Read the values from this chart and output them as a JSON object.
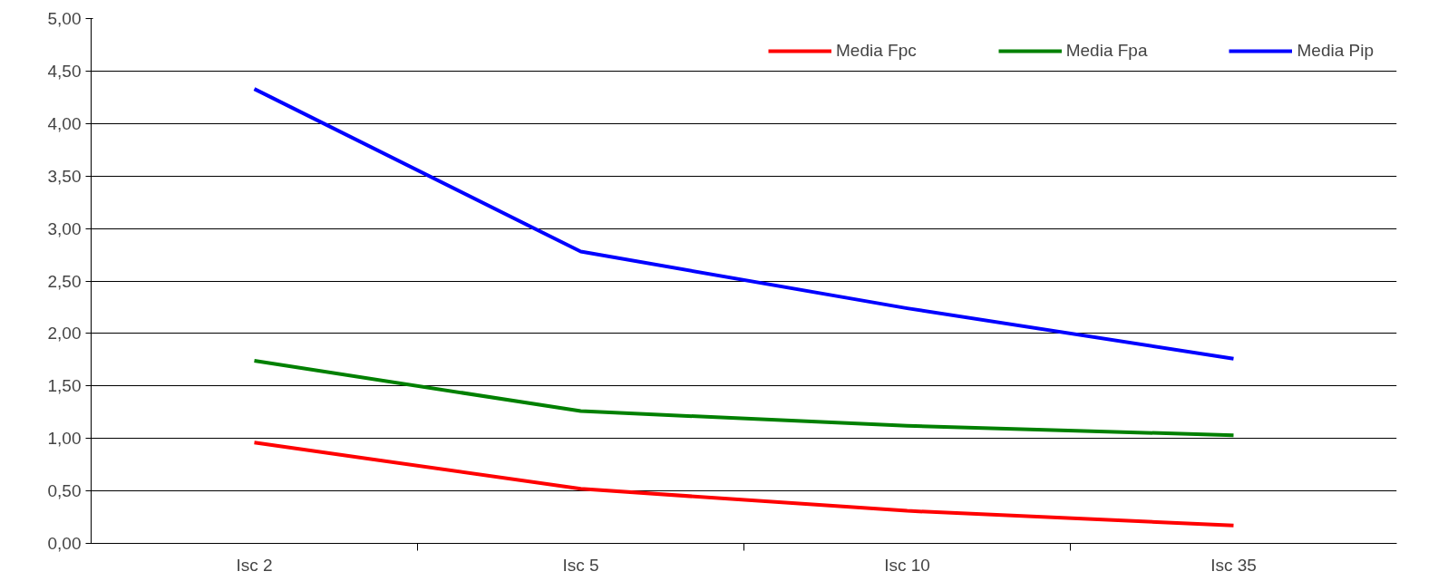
{
  "chart_data": {
    "type": "line",
    "categories": [
      "Isc 2",
      "Isc 5",
      "Isc 10",
      "Isc 35"
    ],
    "series": [
      {
        "name": "Media Fpc",
        "color": "#ff0000",
        "values": [
          0.96,
          0.52,
          0.31,
          0.17
        ]
      },
      {
        "name": "Media Fpa",
        "color": "#008000",
        "values": [
          1.74,
          1.26,
          1.12,
          1.03
        ]
      },
      {
        "name": "Media Pip",
        "color": "#0000ff",
        "values": [
          4.33,
          2.78,
          2.24,
          1.76
        ]
      }
    ],
    "ylim": [
      0,
      5
    ],
    "yticks": [
      {
        "value": 0,
        "label": "0,00"
      },
      {
        "value": 0.5,
        "label": "0,50"
      },
      {
        "value": 1,
        "label": "1,00"
      },
      {
        "value": 1.5,
        "label": "1,50"
      },
      {
        "value": 2,
        "label": "2,00"
      },
      {
        "value": 2.5,
        "label": "2,50"
      },
      {
        "value": 3,
        "label": "3,00"
      },
      {
        "value": 3.5,
        "label": "3,50"
      },
      {
        "value": 4,
        "label": "4,00"
      },
      {
        "value": 4.5,
        "label": "4,50"
      },
      {
        "value": 5,
        "label": "5,00"
      }
    ],
    "grid": "y",
    "legend": "top right",
    "marker": "none",
    "line_style": "solid"
  }
}
